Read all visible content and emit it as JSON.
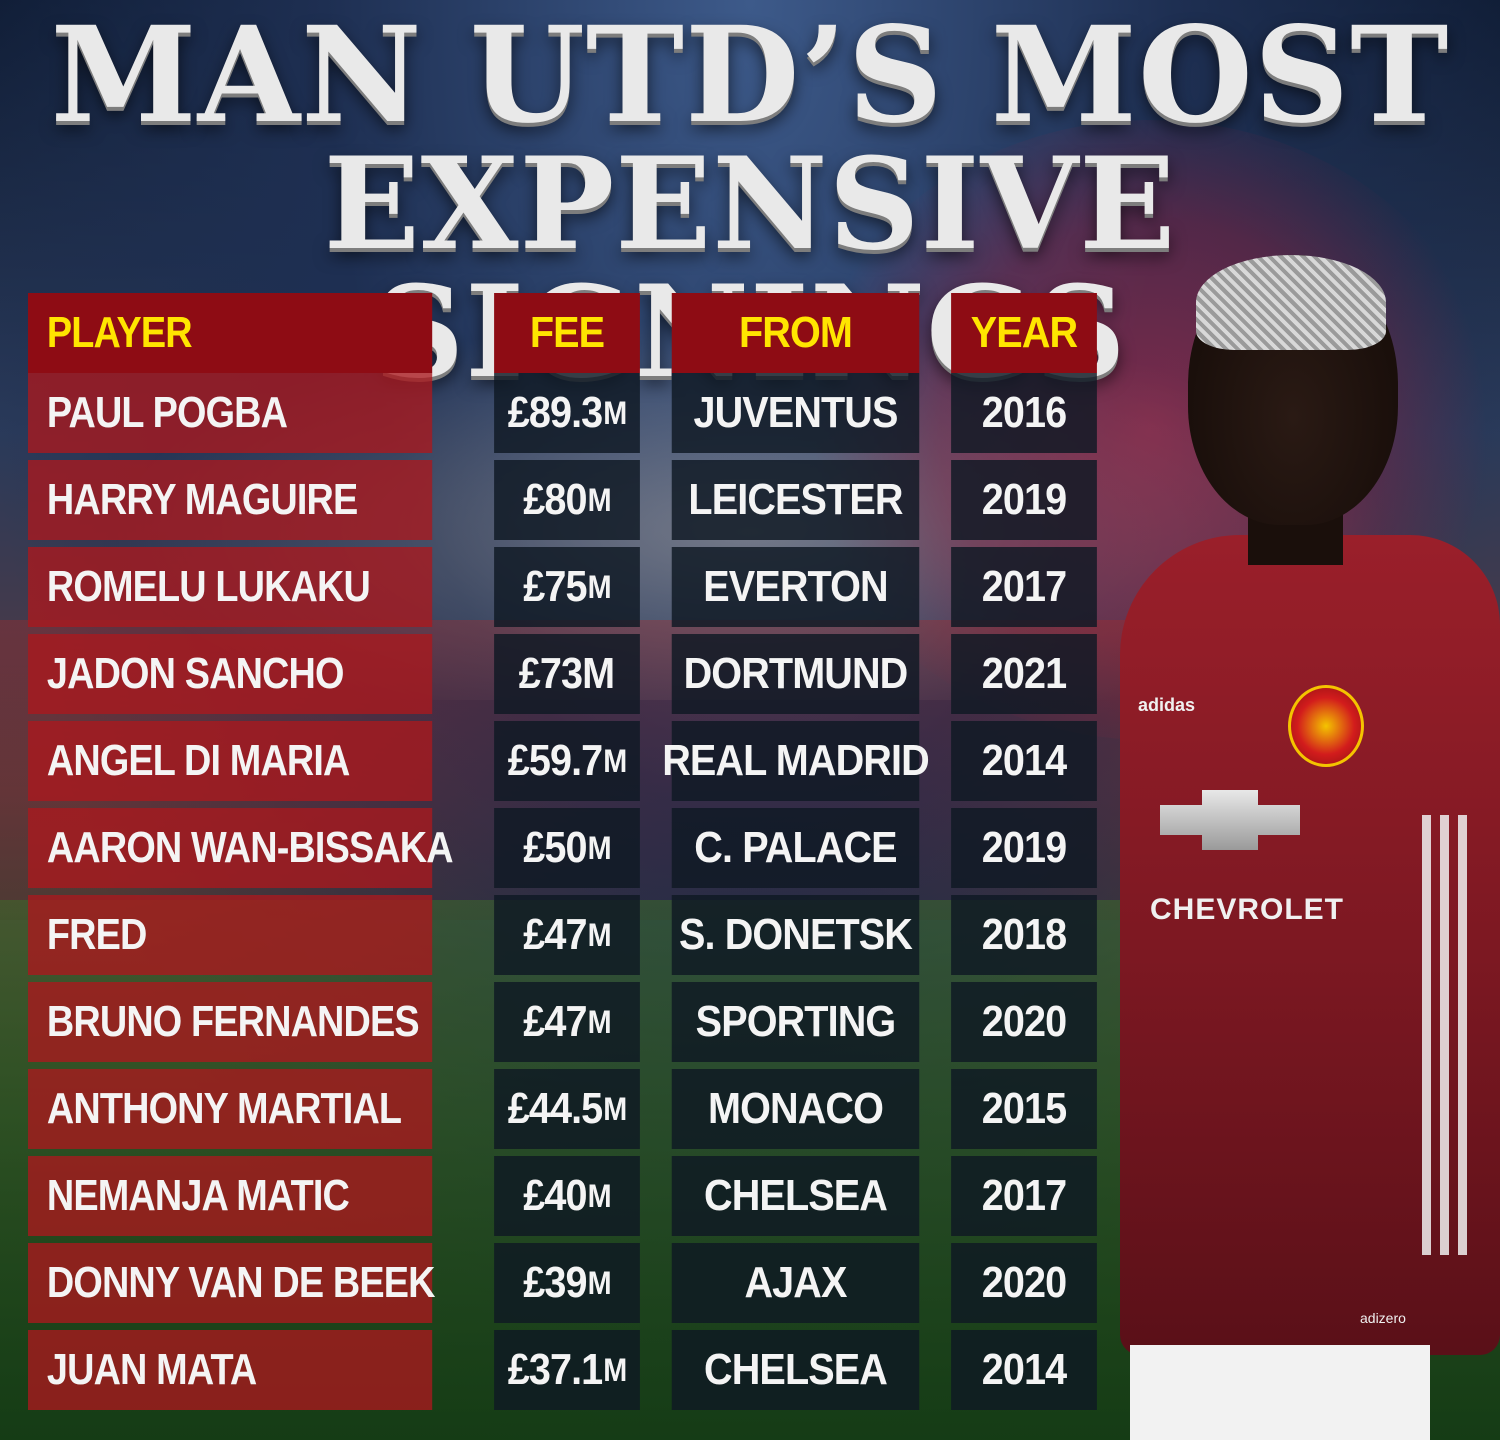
{
  "headline": {
    "line1": "MAN UTD’S MOST",
    "line2": "EXPENSIVE SIGNINGS"
  },
  "table": {
    "headers": {
      "player": "PLAYER",
      "fee": "FEE",
      "from": "FROM",
      "year": "YEAR"
    },
    "rows": [
      {
        "player": "PAUL POGBA",
        "fee_amount": "£89.3",
        "fee_unit": "M",
        "from": "JUVENTUS",
        "year": "2016"
      },
      {
        "player": "HARRY MAGUIRE",
        "fee_amount": "£80",
        "fee_unit": "M",
        "from": "LEICESTER",
        "year": "2019"
      },
      {
        "player": "ROMELU LUKAKU",
        "fee_amount": "£75",
        "fee_unit": "M",
        "from": "EVERTON",
        "year": "2017"
      },
      {
        "player": "JADON SANCHO",
        "fee_amount": "£73M",
        "fee_unit": "",
        "from": "DORTMUND",
        "year": "2021"
      },
      {
        "player": "ANGEL DI MARIA",
        "fee_amount": "£59.7",
        "fee_unit": "M",
        "from": "REAL MADRID",
        "year": "2014"
      },
      {
        "player": "AARON WAN-BISSAKA",
        "fee_amount": "£50",
        "fee_unit": "M",
        "from": "C. PALACE",
        "year": "2019"
      },
      {
        "player": "FRED",
        "fee_amount": "£47",
        "fee_unit": "M",
        "from": "S. DONETSK",
        "year": "2018"
      },
      {
        "player": "BRUNO FERNANDES",
        "fee_amount": "£47",
        "fee_unit": "M",
        "from": "SPORTING",
        "year": "2020"
      },
      {
        "player": "ANTHONY MARTIAL",
        "fee_amount": "£44.5",
        "fee_unit": "M",
        "from": "MONACO",
        "year": "2015"
      },
      {
        "player": "NEMANJA MATIC",
        "fee_amount": "£40",
        "fee_unit": "M",
        "from": "CHELSEA",
        "year": "2017"
      },
      {
        "player": "DONNY VAN DE BEEK",
        "fee_amount": "£39",
        "fee_unit": "M",
        "from": "AJAX",
        "year": "2020"
      },
      {
        "player": "JUAN MATA",
        "fee_amount": "£37.1",
        "fee_unit": "M",
        "from": "CHELSEA",
        "year": "2014"
      }
    ]
  },
  "player_image": {
    "sponsor": "CHEVROLET",
    "kit_brand": "adidas",
    "shirt_tag": "adizero"
  },
  "colors": {
    "header_bg": "#8e0c14",
    "header_text": "#ffe500",
    "player_cell_bg": "#aa181e",
    "data_cell_bg": "#0f1923"
  }
}
